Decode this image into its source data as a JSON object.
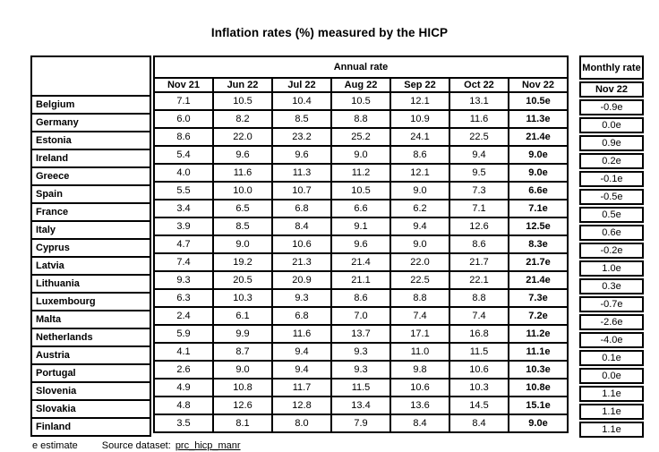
{
  "title": "Inflation rates (%) measured by the HICP",
  "table": {
    "annual_header": "Annual rate",
    "monthly_header": "Monthly rate",
    "monthly_subheader": "Nov 22",
    "columns": [
      "Nov 21",
      "Jun 22",
      "Jul 22",
      "Aug 22",
      "Sep 22",
      "Oct 22",
      "Nov 22"
    ],
    "rows": [
      {
        "country": "Belgium",
        "values": [
          "7.1",
          "10.5",
          "10.4",
          "10.5",
          "12.1",
          "13.1",
          "10.5e"
        ],
        "monthly": "-0.9e"
      },
      {
        "country": "Germany",
        "values": [
          "6.0",
          "8.2",
          "8.5",
          "8.8",
          "10.9",
          "11.6",
          "11.3e"
        ],
        "monthly": "0.0e"
      },
      {
        "country": "Estonia",
        "values": [
          "8.6",
          "22.0",
          "23.2",
          "25.2",
          "24.1",
          "22.5",
          "21.4e"
        ],
        "monthly": "0.9e"
      },
      {
        "country": "Ireland",
        "values": [
          "5.4",
          "9.6",
          "9.6",
          "9.0",
          "8.6",
          "9.4",
          "9.0e"
        ],
        "monthly": "0.2e"
      },
      {
        "country": "Greece",
        "values": [
          "4.0",
          "11.6",
          "11.3",
          "11.2",
          "12.1",
          "9.5",
          "9.0e"
        ],
        "monthly": "-0.1e"
      },
      {
        "country": "Spain",
        "values": [
          "5.5",
          "10.0",
          "10.7",
          "10.5",
          "9.0",
          "7.3",
          "6.6e"
        ],
        "monthly": "-0.5e"
      },
      {
        "country": "France",
        "values": [
          "3.4",
          "6.5",
          "6.8",
          "6.6",
          "6.2",
          "7.1",
          "7.1e"
        ],
        "monthly": "0.5e"
      },
      {
        "country": "Italy",
        "values": [
          "3.9",
          "8.5",
          "8.4",
          "9.1",
          "9.4",
          "12.6",
          "12.5e"
        ],
        "monthly": "0.6e"
      },
      {
        "country": "Cyprus",
        "values": [
          "4.7",
          "9.0",
          "10.6",
          "9.6",
          "9.0",
          "8.6",
          "8.3e"
        ],
        "monthly": "-0.2e"
      },
      {
        "country": "Latvia",
        "values": [
          "7.4",
          "19.2",
          "21.3",
          "21.4",
          "22.0",
          "21.7",
          "21.7e"
        ],
        "monthly": "1.0e"
      },
      {
        "country": "Lithuania",
        "values": [
          "9.3",
          "20.5",
          "20.9",
          "21.1",
          "22.5",
          "22.1",
          "21.4e"
        ],
        "monthly": "0.3e"
      },
      {
        "country": "Luxembourg",
        "values": [
          "6.3",
          "10.3",
          "9.3",
          "8.6",
          "8.8",
          "8.8",
          "7.3e"
        ],
        "monthly": "-0.7e"
      },
      {
        "country": "Malta",
        "values": [
          "2.4",
          "6.1",
          "6.8",
          "7.0",
          "7.4",
          "7.4",
          "7.2e"
        ],
        "monthly": "-2.6e"
      },
      {
        "country": "Netherlands",
        "values": [
          "5.9",
          "9.9",
          "11.6",
          "13.7",
          "17.1",
          "16.8",
          "11.2e"
        ],
        "monthly": "-4.0e"
      },
      {
        "country": "Austria",
        "values": [
          "4.1",
          "8.7",
          "9.4",
          "9.3",
          "11.0",
          "11.5",
          "11.1e"
        ],
        "monthly": "0.1e"
      },
      {
        "country": "Portugal",
        "values": [
          "2.6",
          "9.0",
          "9.4",
          "9.3",
          "9.8",
          "10.6",
          "10.3e"
        ],
        "monthly": "0.0e"
      },
      {
        "country": "Slovenia",
        "values": [
          "4.9",
          "10.8",
          "11.7",
          "11.5",
          "10.6",
          "10.3",
          "10.8e"
        ],
        "monthly": "1.1e"
      },
      {
        "country": "Slovakia",
        "values": [
          "4.8",
          "12.6",
          "12.8",
          "13.4",
          "13.6",
          "14.5",
          "15.1e"
        ],
        "monthly": "1.1e"
      },
      {
        "country": "Finland",
        "values": [
          "3.5",
          "8.1",
          "8.0",
          "7.9",
          "8.4",
          "8.4",
          "9.0e"
        ],
        "monthly": "1.1e"
      }
    ]
  },
  "footer": {
    "estimate_note": "e estimate",
    "source_label": "Source dataset:",
    "source_link": "prc_hicp_manr"
  }
}
